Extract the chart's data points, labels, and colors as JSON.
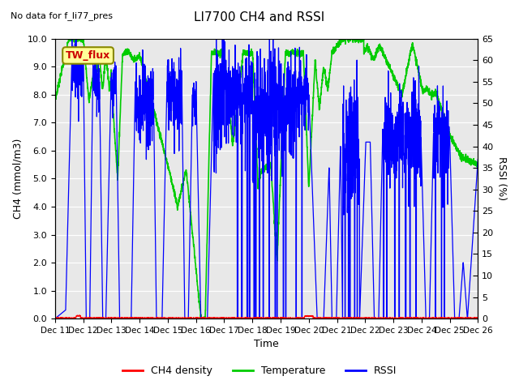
{
  "title": "LI7700 CH4 and RSSI",
  "subtitle": "No data for f_li77_pres",
  "xlabel": "Time",
  "ylabel_left": "CH4 (mmol/m3)",
  "ylabel_right": "RSSI (%)",
  "annotation": "TW_flux",
  "ylim_left": [
    0.0,
    10.0
  ],
  "ylim_right": [
    0,
    65
  ],
  "yticks_left": [
    0.0,
    1.0,
    2.0,
    3.0,
    4.0,
    5.0,
    6.0,
    7.0,
    8.0,
    9.0,
    10.0
  ],
  "yticks_right": [
    0,
    5,
    10,
    15,
    20,
    25,
    30,
    35,
    40,
    45,
    50,
    55,
    60,
    65
  ],
  "xticklabels": [
    "Dec 11",
    "Dec 12",
    "Dec 13",
    "Dec 14",
    "Dec 15",
    "Dec 16",
    "Dec 17",
    "Dec 18",
    "Dec 19",
    "Dec 20",
    "Dec 21",
    "Dec 22",
    "Dec 23",
    "Dec 24",
    "Dec 25",
    "Dec 26"
  ],
  "color_ch4": "#ff0000",
  "color_temp": "#00cc00",
  "color_rssi": "#0000ff",
  "bg_color": "#d8d8d8",
  "plot_bg": "#e8e8e8",
  "grid_color": "#ffffff",
  "legend_labels": [
    "CH4 density",
    "Temperature",
    "RSSI"
  ],
  "n_points": 3000,
  "fig_bg": "#ffffff"
}
